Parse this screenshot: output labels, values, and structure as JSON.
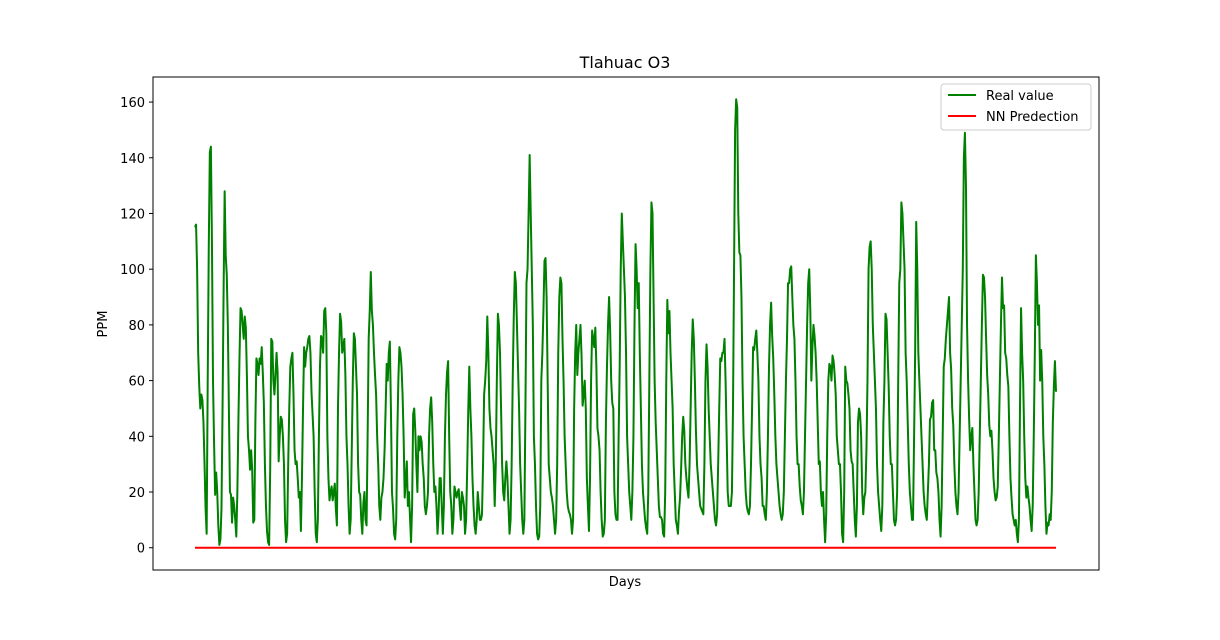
{
  "chart_data": {
    "type": "line",
    "title": "Tlahuac O3",
    "xlabel": "Days",
    "ylabel": "PPM",
    "ylim": [
      -8,
      169
    ],
    "yticks": [
      0,
      20,
      40,
      60,
      80,
      100,
      120,
      140,
      160
    ],
    "grid": false,
    "legend_position": "upper right",
    "series": [
      {
        "name": "Real value",
        "color": "#008000",
        "values": [
          115,
          116,
          100,
          70,
          58,
          50,
          55,
          53,
          45,
          30,
          14,
          5,
          60,
          108,
          142,
          144,
          110,
          60,
          38,
          19,
          27,
          20,
          8,
          1,
          3,
          14,
          50,
          92,
          128,
          105,
          98,
          80,
          50,
          20,
          19,
          9,
          18,
          15,
          10,
          4,
          20,
          46,
          68,
          86,
          85,
          80,
          75,
          83,
          79,
          62,
          40,
          35,
          28,
          35,
          28,
          9,
          10,
          45,
          68,
          66,
          62,
          68,
          66,
          72,
          63,
          52,
          30,
          15,
          6,
          2,
          1,
          28,
          75,
          74,
          60,
          55,
          62,
          70,
          63,
          31,
          40,
          47,
          46,
          40,
          30,
          10,
          2,
          5,
          30,
          50,
          65,
          68,
          70,
          55,
          35,
          30,
          31,
          25,
          18,
          20,
          6,
          25,
          50,
          72,
          65,
          70,
          72,
          75,
          76,
          70,
          56,
          48,
          40,
          20,
          5,
          2,
          10,
          40,
          65,
          76,
          75,
          70,
          85,
          86,
          77,
          40,
          25,
          17,
          20,
          22,
          17,
          20,
          23,
          14,
          8,
          50,
          70,
          84,
          81,
          70,
          72,
          75,
          62,
          40,
          30,
          15,
          5,
          10,
          35,
          60,
          77,
          75,
          65,
          55,
          30,
          20,
          19,
          10,
          5,
          16,
          20,
          10,
          8,
          40,
          75,
          85,
          99,
          85,
          80,
          70,
          62,
          55,
          40,
          30,
          15,
          10,
          18,
          20,
          25,
          35,
          50,
          66,
          60,
          70,
          74,
          50,
          20,
          14,
          5,
          3,
          10,
          40,
          60,
          72,
          70,
          65,
          55,
          40,
          18,
          24,
          31,
          15,
          20,
          11,
          2,
          15,
          48,
          50,
          42,
          30,
          20,
          40,
          35,
          40,
          38,
          30,
          25,
          15,
          12,
          15,
          20,
          40,
          50,
          54,
          45,
          30,
          20,
          22,
          15,
          5,
          12,
          25,
          25,
          15,
          5,
          15,
          40,
          55,
          63,
          67,
          40,
          20,
          15,
          5,
          10,
          22,
          20,
          18,
          20,
          21,
          15,
          10,
          20,
          18,
          15,
          5,
          10,
          28,
          49,
          65,
          50,
          40,
          25,
          15,
          8,
          5,
          10,
          20,
          15,
          10,
          10,
          12,
          30,
          55,
          60,
          67,
          83,
          70,
          50,
          43,
          40,
          35,
          30,
          15,
          30,
          60,
          84,
          80,
          70,
          50,
          30,
          20,
          17,
          25,
          31,
          25,
          15,
          5,
          10,
          30,
          60,
          83,
          99,
          95,
          80,
          65,
          50,
          30,
          20,
          10,
          5,
          10,
          50,
          95,
          100,
          120,
          141,
          120,
          100,
          80,
          40,
          30,
          15,
          5,
          3,
          4,
          15,
          60,
          70,
          85,
          103,
          104,
          90,
          60,
          30,
          25,
          20,
          18,
          15,
          10,
          5,
          10,
          30,
          70,
          90,
          97,
          95,
          75,
          60,
          40,
          30,
          20,
          15,
          13,
          12,
          10,
          5,
          10,
          50,
          70,
          80,
          62,
          70,
          75,
          80,
          69,
          51,
          55,
          60,
          50,
          25,
          15,
          6,
          25,
          60,
          78,
          75,
          72,
          79,
          65,
          43,
          40,
          35,
          20,
          10,
          4,
          5,
          10,
          45,
          65,
          80,
          90,
          78,
          60,
          52,
          50,
          20,
          12,
          10,
          10,
          40,
          65,
          100,
          120,
          110,
          100,
          90,
          70,
          40,
          30,
          20,
          15,
          10,
          20,
          40,
          80,
          109,
          100,
          86,
          95,
          70,
          50,
          30,
          20,
          15,
          10,
          7,
          5,
          20,
          60,
          100,
          124,
          120,
          90,
          60,
          45,
          35,
          25,
          15,
          11,
          11,
          10,
          5,
          4,
          20,
          60,
          89,
          77,
          85,
          70,
          60,
          50,
          30,
          20,
          10,
          8,
          5,
          13,
          18,
          28,
          40,
          47,
          42,
          30,
          25,
          21,
          18,
          30,
          50,
          70,
          82,
          75,
          60,
          42,
          30,
          25,
          20,
          15,
          14,
          13,
          12,
          30,
          60,
          73,
          65,
          50,
          40,
          30,
          25,
          20,
          15,
          10,
          8,
          12,
          30,
          50,
          68,
          67,
          70,
          70,
          75,
          60,
          40,
          20,
          15,
          15,
          15,
          20,
          50,
          100,
          150,
          161,
          158,
          120,
          106,
          105,
          90,
          60,
          40,
          30,
          20,
          15,
          13,
          12,
          15,
          30,
          50,
          72,
          71,
          75,
          78,
          70,
          60,
          40,
          30,
          25,
          15,
          15,
          12,
          10,
          20,
          40,
          65,
          80,
          88,
          76,
          68,
          55,
          40,
          30,
          25,
          20,
          15,
          12,
          10,
          12,
          20,
          40,
          60,
          75,
          95,
          95,
          100,
          101,
          90,
          80,
          75,
          60,
          40,
          30,
          30,
          22,
          17,
          15,
          12,
          20,
          40,
          60,
          80,
          95,
          100,
          85,
          60,
          72,
          80,
          76,
          70,
          60,
          45,
          30,
          31,
          20,
          15,
          20,
          10,
          2,
          12,
          40,
          60,
          66,
          65,
          60,
          69,
          67,
          62,
          55,
          40,
          35,
          30,
          30,
          20,
          5,
          2,
          20,
          65,
          60,
          59,
          55,
          50,
          35,
          31,
          30,
          20,
          10,
          4,
          15,
          45,
          50,
          48,
          40,
          20,
          12,
          18,
          20,
          35,
          60,
          100,
          108,
          110,
          100,
          80,
          70,
          60,
          50,
          30,
          20,
          15,
          10,
          6,
          15,
          45,
          60,
          84,
          82,
          70,
          58,
          40,
          30,
          30,
          20,
          10,
          8,
          10,
          20,
          60,
          95,
          100,
          124,
          120,
          110,
          100,
          70,
          60,
          45,
          30,
          20,
          15,
          10,
          10,
          40,
          70,
          117,
          100,
          70,
          60,
          50,
          40,
          30,
          20,
          15,
          12,
          10,
          20,
          30,
          46,
          47,
          52,
          53,
          35,
          35,
          27,
          25,
          20,
          10,
          4,
          15,
          40,
          65,
          68,
          75,
          80,
          85,
          90,
          70,
          64,
          50,
          44,
          30,
          20,
          15,
          12,
          20,
          40,
          60,
          80,
          100,
          140,
          149,
          130,
          80,
          60,
          46,
          35,
          40,
          43,
          30,
          20,
          10,
          8,
          10,
          20,
          40,
          60,
          80,
          98,
          97,
          90,
          75,
          62,
          55,
          44,
          40,
          42,
          35,
          25,
          20,
          17,
          18,
          22,
          40,
          60,
          80,
          97,
          86,
          87,
          70,
          68,
          62,
          58,
          40,
          25,
          18,
          12,
          10,
          8,
          10,
          5,
          2,
          10,
          50,
          86,
          70,
          60,
          40,
          25,
          18,
          22,
          18,
          15,
          10,
          6,
          15,
          40,
          70,
          105,
          95,
          80,
          87,
          60,
          71,
          60,
          40,
          30,
          15,
          5,
          9,
          8,
          12,
          10,
          20,
          45,
          58,
          67,
          56
        ]
      },
      {
        "name": "NN Predection",
        "color": "#ff0000",
        "values": "constant-zero"
      }
    ]
  }
}
